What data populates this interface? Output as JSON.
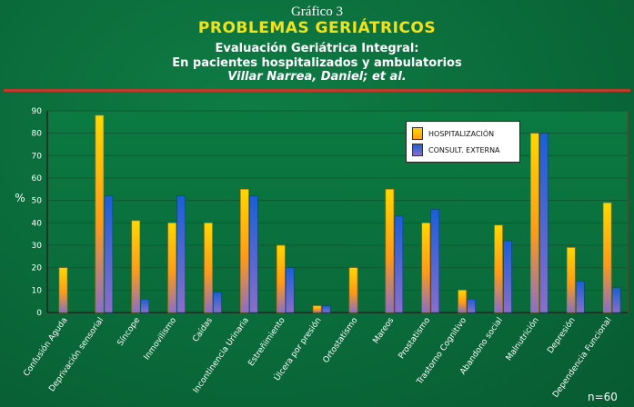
{
  "header": {
    "figure_label": "Gráfico 3",
    "title": "PROBLEMAS GERIÁTRICOS",
    "subtitle_1": "Evaluación Geriátrica Integral:",
    "subtitle_2": "En pacientes hospitalizados y ambulatorios",
    "author": "Villar Narrea, Daniel; et al."
  },
  "footer": {
    "n_note": "n=60"
  },
  "colors": {
    "background": "#0a6a3a",
    "title": "#f2e21a",
    "rule": "#c0392b",
    "hospitalizacion": "#ffb000",
    "consulta": "#1a5fd6"
  },
  "chart_data": {
    "type": "bar",
    "ylabel": "%",
    "xlabel": "",
    "ylim": [
      0,
      90
    ],
    "yticks": [
      0,
      10,
      20,
      30,
      40,
      50,
      60,
      70,
      80,
      90
    ],
    "grid": true,
    "legend_position": "top-right",
    "categories": [
      "Confusión Aguda",
      "Deprivación sensorial",
      "Síncope",
      "Inmovilismo",
      "Caídas",
      "Incontinencia Urinaria",
      "Estreñimiento",
      "Úlcera por presión",
      "Ortostatismo",
      "Mareos",
      "Prostatismo",
      "Trastorno Cognitivo",
      "Abandono social",
      "Malnutrición",
      "Depresión",
      "Dependencia Funcional"
    ],
    "series": [
      {
        "name": "HOSPITALIZACIÓN",
        "values": [
          20,
          88,
          41,
          40,
          40,
          55,
          30,
          3,
          20,
          55,
          40,
          10,
          39,
          80,
          29,
          49
        ]
      },
      {
        "name": "CONSULT. EXTERNA",
        "values": [
          0,
          52,
          6,
          52,
          9,
          52,
          20,
          3,
          0,
          43,
          46,
          6,
          32,
          80,
          14,
          11
        ]
      }
    ]
  }
}
